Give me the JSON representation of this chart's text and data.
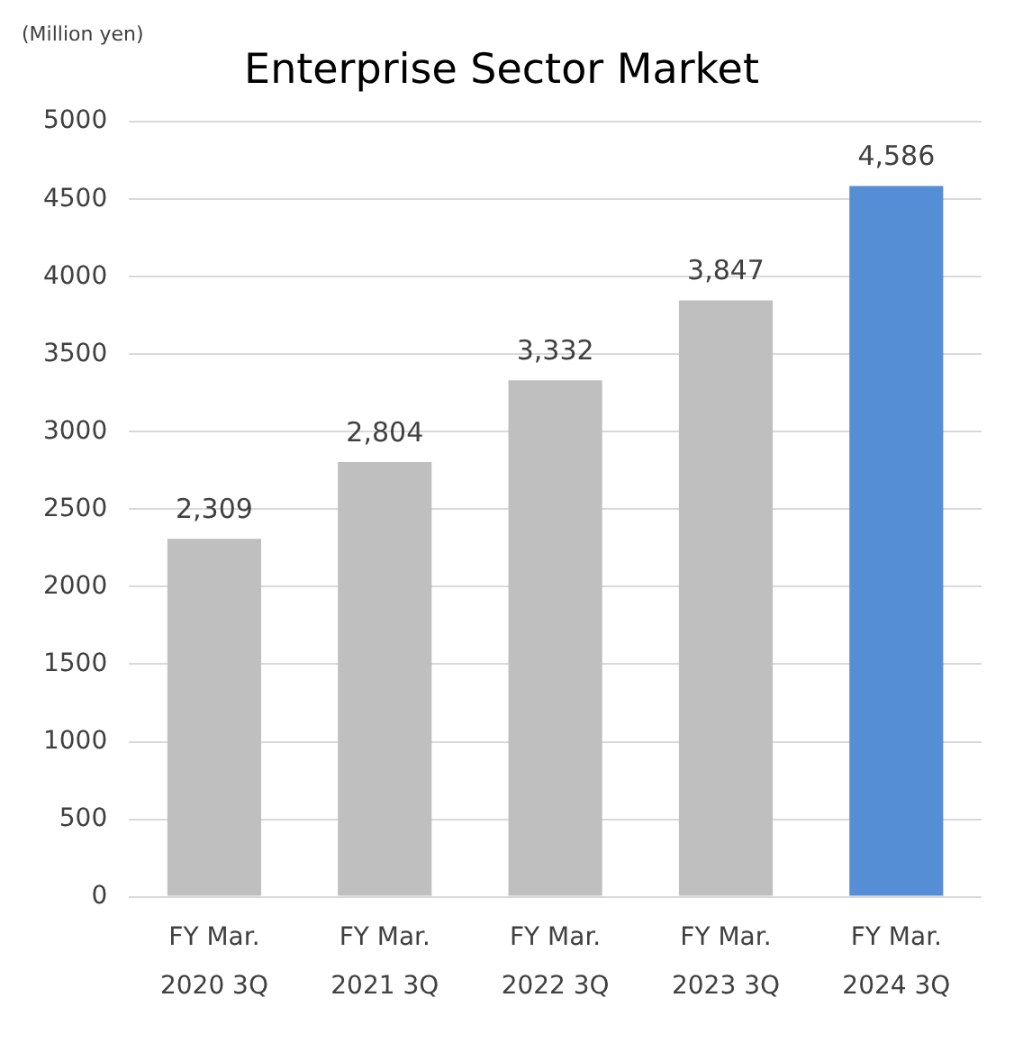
{
  "chart_data": {
    "type": "bar",
    "title": "Enterprise Sector Market",
    "ylabel": "(Million yen)",
    "categories": [
      "FY Mar.\n2020 3Q",
      "FY Mar.\n2021 3Q",
      "FY Mar.\n2022 3Q",
      "FY Mar.\n2023 3Q",
      "FY Mar.\n2024 3Q"
    ],
    "values": [
      2309,
      2804,
      3332,
      3847,
      4586
    ],
    "colors": [
      "#bfbfbf",
      "#bfbfbf",
      "#bfbfbf",
      "#bfbfbf",
      "#558ed5"
    ],
    "value_labels": [
      "2,309",
      "2,804",
      "3,332",
      "3,847",
      "4,586"
    ],
    "ylim": [
      0,
      5000
    ],
    "yticks": [
      0,
      500,
      1000,
      1500,
      2000,
      2500,
      3000,
      3500,
      4000,
      4500,
      5000
    ],
    "grid": "y",
    "legend": false
  }
}
